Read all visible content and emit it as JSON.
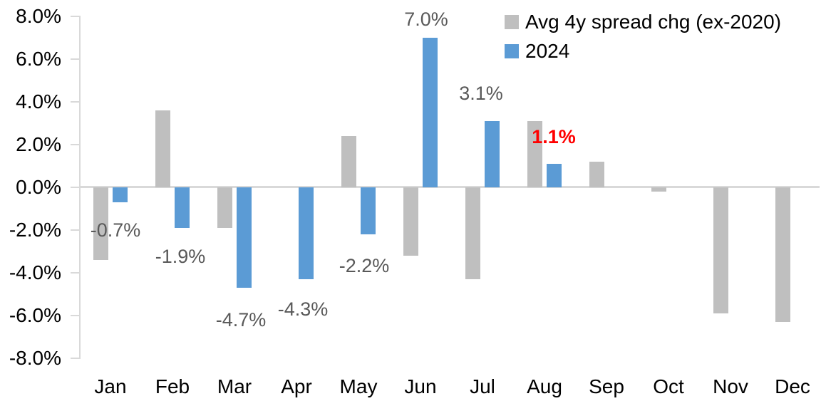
{
  "chart_data": {
    "type": "bar",
    "categories": [
      "Jan",
      "Feb",
      "Mar",
      "Apr",
      "May",
      "Jun",
      "Jul",
      "Aug",
      "Sep",
      "Oct",
      "Nov",
      "Dec"
    ],
    "series": [
      {
        "name": "Avg 4y spread chg (ex-2020)",
        "color": "#BFBFBF",
        "values": [
          -3.4,
          3.6,
          -1.9,
          0.0,
          2.4,
          -3.2,
          -4.3,
          3.1,
          1.2,
          -0.2,
          -5.9,
          -6.3
        ]
      },
      {
        "name": "2024",
        "color": "#5B9BD5",
        "values": [
          -0.7,
          -1.9,
          -4.7,
          -4.3,
          -2.2,
          7.0,
          3.1,
          1.1,
          null,
          null,
          null,
          null
        ]
      }
    ],
    "data_labels": [
      {
        "month": "Jan",
        "series": "2024",
        "text": "-0.7%",
        "color": "#595959",
        "bold": false
      },
      {
        "month": "Feb",
        "series": "2024",
        "text": "-1.9%",
        "color": "#595959",
        "bold": false
      },
      {
        "month": "Mar",
        "series": "2024",
        "text": "-4.7%",
        "color": "#595959",
        "bold": false
      },
      {
        "month": "Apr",
        "series": "2024",
        "text": "-4.3%",
        "color": "#595959",
        "bold": false
      },
      {
        "month": "May",
        "series": "2024",
        "text": "-2.2%",
        "color": "#595959",
        "bold": false
      },
      {
        "month": "Jun",
        "series": "2024",
        "text": "7.0%",
        "color": "#595959",
        "bold": false
      },
      {
        "month": "Jul",
        "series": "2024",
        "text": "3.1%",
        "color": "#595959",
        "bold": false
      },
      {
        "month": "Aug",
        "series": "2024",
        "text": "1.1%",
        "color": "#FF0000",
        "bold": true
      }
    ],
    "y_ticks": [
      "8.0%",
      "6.0%",
      "4.0%",
      "2.0%",
      "0.0%",
      "-2.0%",
      "-4.0%",
      "-6.0%",
      "-8.0%"
    ],
    "ylim": [
      -8,
      8
    ],
    "y_step": 2,
    "grid": false,
    "legend_position": "top-right",
    "axis_color": "#D9D9D9",
    "tick_text_color": "#000000",
    "title": "",
    "xlabel": "",
    "ylabel": ""
  }
}
